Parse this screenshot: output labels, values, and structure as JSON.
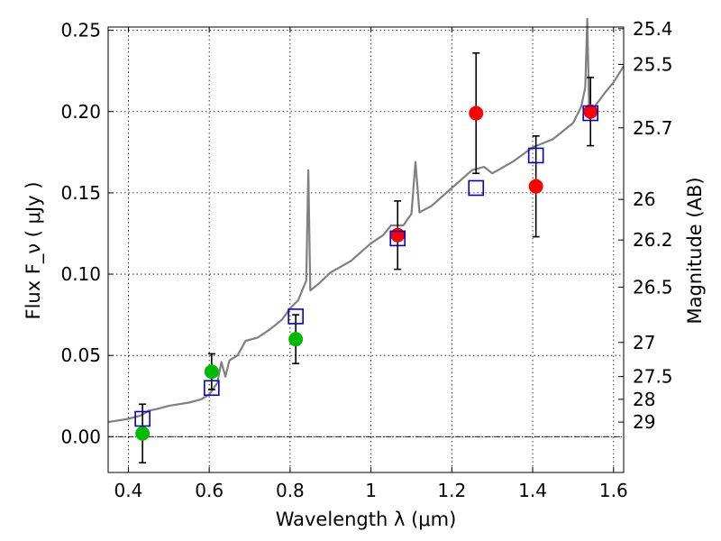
{
  "chart_data": {
    "type": "scatter",
    "xlabel": "Wavelength  λ (μm)",
    "ylabel": "Flux  F_ν  ( μJy )",
    "y2label": "Magnitude (AB)",
    "xlim": [
      0.35,
      1.625
    ],
    "ylim": [
      -0.022,
      0.252
    ],
    "grid": true,
    "x_ticks": [
      0.4,
      0.6,
      0.8,
      1.0,
      1.2,
      1.4,
      1.6
    ],
    "x_tick_labels": [
      "0.4",
      "0.6",
      "0.8",
      "1",
      "1.2",
      "1.4",
      "1.6"
    ],
    "y_ticks": [
      0.0,
      0.05,
      0.1,
      0.15,
      0.2,
      0.25
    ],
    "y_tick_labels": [
      "0.00",
      "0.05",
      "0.10",
      "0.15",
      "0.20",
      "0.25"
    ],
    "y2_ticks": [
      {
        "flux": 0.251,
        "label": "25.4"
      },
      {
        "flux": 0.229,
        "label": "25.5"
      },
      {
        "flux": 0.19,
        "label": "25.7"
      },
      {
        "flux": 0.146,
        "label": "26"
      },
      {
        "flux": 0.121,
        "label": "26.2"
      },
      {
        "flux": 0.092,
        "label": "26.5"
      },
      {
        "flux": 0.058,
        "label": "27"
      },
      {
        "flux": 0.037,
        "label": "27.5"
      },
      {
        "flux": 0.023,
        "label": "28"
      },
      {
        "flux": 0.009,
        "label": "29"
      }
    ],
    "zero_line": 0.0,
    "series": [
      {
        "kind": "observed",
        "marker": "circle",
        "points": [
          {
            "x": 0.435,
            "y": 0.002,
            "err": 0.018,
            "color": "#00bb00"
          },
          {
            "x": 0.606,
            "y": 0.04,
            "err": 0.011,
            "color": "#00bb00"
          },
          {
            "x": 0.814,
            "y": 0.06,
            "err": 0.015,
            "color": "#00bb00"
          },
          {
            "x": 1.066,
            "y": 0.124,
            "err": 0.021,
            "color": "#ff0000"
          },
          {
            "x": 1.26,
            "y": 0.199,
            "err": 0.037,
            "color": "#ff0000"
          },
          {
            "x": 1.408,
            "y": 0.154,
            "err": 0.031,
            "color": "#ff0000"
          },
          {
            "x": 1.543,
            "y": 0.2,
            "err": 0.021,
            "color": "#ff0000"
          }
        ]
      },
      {
        "kind": "model",
        "marker": "square",
        "color": "#0000cc",
        "points": [
          {
            "x": 0.435,
            "y": 0.011
          },
          {
            "x": 0.606,
            "y": 0.03
          },
          {
            "x": 0.814,
            "y": 0.074
          },
          {
            "x": 1.066,
            "y": 0.122
          },
          {
            "x": 1.26,
            "y": 0.153
          },
          {
            "x": 1.408,
            "y": 0.173
          },
          {
            "x": 1.543,
            "y": 0.199
          }
        ]
      },
      {
        "kind": "template",
        "type": "line",
        "color": "#808080",
        "x": [
          0.35,
          0.4,
          0.43,
          0.45,
          0.47,
          0.5,
          0.55,
          0.58,
          0.6,
          0.62,
          0.63,
          0.64,
          0.65,
          0.67,
          0.69,
          0.72,
          0.75,
          0.78,
          0.8,
          0.82,
          0.83,
          0.84,
          0.845,
          0.85,
          0.87,
          0.9,
          0.95,
          1.0,
          1.03,
          1.05,
          1.08,
          1.1,
          1.11,
          1.12,
          1.15,
          1.2,
          1.25,
          1.28,
          1.3,
          1.35,
          1.4,
          1.45,
          1.5,
          1.52,
          1.53,
          1.535,
          1.54,
          1.55,
          1.58,
          1.6,
          1.625
        ],
        "y": [
          0.009,
          0.011,
          0.013,
          0.016,
          0.017,
          0.019,
          0.021,
          0.023,
          0.026,
          0.033,
          0.046,
          0.037,
          0.047,
          0.05,
          0.059,
          0.061,
          0.066,
          0.072,
          0.079,
          0.084,
          0.09,
          0.096,
          0.164,
          0.09,
          0.094,
          0.101,
          0.108,
          0.119,
          0.124,
          0.13,
          0.13,
          0.137,
          0.169,
          0.138,
          0.142,
          0.153,
          0.164,
          0.166,
          0.162,
          0.169,
          0.178,
          0.183,
          0.193,
          0.203,
          0.215,
          0.257,
          0.196,
          0.202,
          0.212,
          0.218,
          0.228
        ]
      }
    ]
  }
}
